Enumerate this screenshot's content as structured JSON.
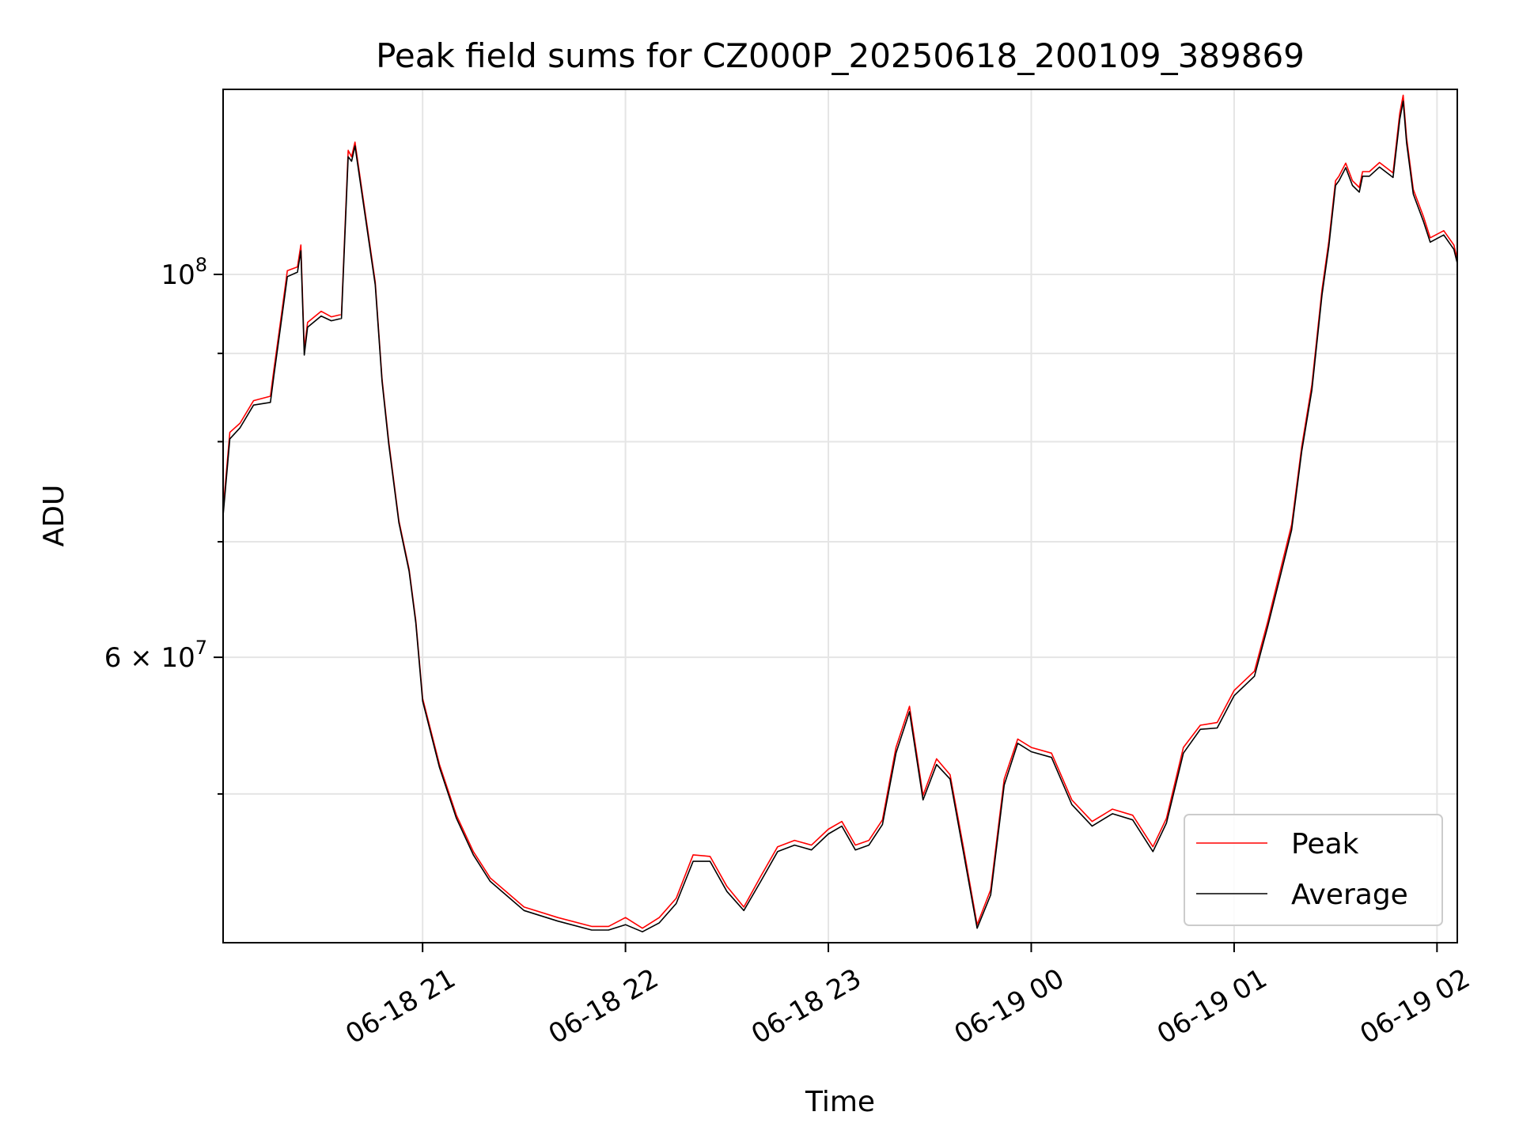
{
  "chart_data": {
    "type": "line",
    "title": "Peak field sums for CZ000P_20250618_200109_389869",
    "xlabel": "Time",
    "ylabel": "ADU",
    "y_scale": "log",
    "ylim": [
      41000000,
      128000000
    ],
    "xlim": [
      "2025-06-18 20:01",
      "2025-06-19 02:06"
    ],
    "x_ticks": [
      {
        "at": "2025-06-18 21:00",
        "label": "06-18 21"
      },
      {
        "at": "2025-06-18 22:00",
        "label": "06-18 22"
      },
      {
        "at": "2025-06-18 23:00",
        "label": "06-18 23"
      },
      {
        "at": "2025-06-19 00:00",
        "label": "06-19 00"
      },
      {
        "at": "2025-06-19 01:00",
        "label": "06-19 01"
      },
      {
        "at": "2025-06-19 02:00",
        "label": "06-19 02"
      }
    ],
    "y_major_ticks": [
      {
        "value": 100000000,
        "base": "10",
        "exp": "8"
      },
      {
        "value": 60000000,
        "mantissa": "6",
        "base": "10",
        "exp": "7"
      }
    ],
    "y_minor_ticks": [
      50000000,
      70000000,
      80000000,
      90000000
    ],
    "grid": true,
    "legend_position": "lower-right",
    "series": [
      {
        "name": "Peak",
        "color": "#ff0000",
        "x": [
          "2025-06-18 20:01",
          "2025-06-18 20:03",
          "2025-06-18 20:06",
          "2025-06-18 20:10",
          "2025-06-18 20:15",
          "2025-06-18 20:16",
          "2025-06-18 20:18",
          "2025-06-18 20:20",
          "2025-06-18 20:23",
          "2025-06-18 20:24",
          "2025-06-18 20:25",
          "2025-06-18 20:26",
          "2025-06-18 20:30",
          "2025-06-18 20:33",
          "2025-06-18 20:36",
          "2025-06-18 20:38",
          "2025-06-18 20:39",
          "2025-06-18 20:40",
          "2025-06-18 20:46",
          "2025-06-18 20:48",
          "2025-06-18 20:50",
          "2025-06-18 20:53",
          "2025-06-18 20:56",
          "2025-06-18 20:58",
          "2025-06-18 21:00",
          "2025-06-18 21:05",
          "2025-06-18 21:10",
          "2025-06-18 21:15",
          "2025-06-18 21:20",
          "2025-06-18 21:30",
          "2025-06-18 21:40",
          "2025-06-18 21:50",
          "2025-06-18 21:55",
          "2025-06-18 22:00",
          "2025-06-18 22:05",
          "2025-06-18 22:10",
          "2025-06-18 22:15",
          "2025-06-18 22:20",
          "2025-06-18 22:25",
          "2025-06-18 22:30",
          "2025-06-18 22:35",
          "2025-06-18 22:40",
          "2025-06-18 22:45",
          "2025-06-18 22:50",
          "2025-06-18 22:55",
          "2025-06-18 23:00",
          "2025-06-18 23:04",
          "2025-06-18 23:08",
          "2025-06-18 23:12",
          "2025-06-18 23:16",
          "2025-06-18 23:20",
          "2025-06-18 23:24",
          "2025-06-18 23:28",
          "2025-06-18 23:32",
          "2025-06-18 23:36",
          "2025-06-18 23:40",
          "2025-06-18 23:44",
          "2025-06-18 23:48",
          "2025-06-18 23:52",
          "2025-06-18 23:56",
          "2025-06-19 00:00",
          "2025-06-19 00:06",
          "2025-06-19 00:12",
          "2025-06-19 00:18",
          "2025-06-19 00:24",
          "2025-06-19 00:30",
          "2025-06-19 00:36",
          "2025-06-19 00:40",
          "2025-06-19 00:45",
          "2025-06-19 00:50",
          "2025-06-19 00:55",
          "2025-06-19 01:00",
          "2025-06-19 01:06",
          "2025-06-19 01:10",
          "2025-06-19 01:14",
          "2025-06-19 01:17",
          "2025-06-19 01:20",
          "2025-06-19 01:23",
          "2025-06-19 01:26",
          "2025-06-19 01:28",
          "2025-06-19 01:30",
          "2025-06-19 01:31",
          "2025-06-19 01:33",
          "2025-06-19 01:35",
          "2025-06-19 01:37",
          "2025-06-19 01:38",
          "2025-06-19 01:40",
          "2025-06-19 01:43",
          "2025-06-19 01:47",
          "2025-06-19 01:49",
          "2025-06-19 01:50",
          "2025-06-19 01:51",
          "2025-06-19 01:53",
          "2025-06-19 01:56",
          "2025-06-19 01:58",
          "2025-06-19 02:02",
          "2025-06-19 02:05",
          "2025-06-19 02:06"
        ],
        "y": [
          73000000,
          81000000,
          82000000,
          84500000,
          85000000,
          88000000,
          94000000,
          100500000,
          101000000,
          104000000,
          90500000,
          93800000,
          95200000,
          94500000,
          94800000,
          118000000,
          117000000,
          119300000,
          99000000,
          87000000,
          80000000,
          72000000,
          67500000,
          63000000,
          56800000,
          52000000,
          48600000,
          46300000,
          44700000,
          43000000,
          42400000,
          41900000,
          41900000,
          42400000,
          41800000,
          42400000,
          43500000,
          46100000,
          46000000,
          44200000,
          43000000,
          44800000,
          46600000,
          47000000,
          46700000,
          47700000,
          48200000,
          46700000,
          47000000,
          48300000,
          53200000,
          56200000,
          49900000,
          52400000,
          51300000,
          46500000,
          42000000,
          44000000,
          51000000,
          53800000,
          53200000,
          52800000,
          49600000,
          48200000,
          49000000,
          48600000,
          46600000,
          48400000,
          53200000,
          54800000,
          55000000,
          57400000,
          58900000,
          63000000,
          67800000,
          71600000,
          79500000,
          86300000,
          98000000,
          104500000,
          113300000,
          114000000,
          116000000,
          113300000,
          112300000,
          114700000,
          114700000,
          116100000,
          114500000,
          124000000,
          127000000,
          120000000,
          112000000,
          108000000,
          105000000,
          106000000,
          104000000,
          102000000
        ]
      },
      {
        "name": "Average",
        "color": "#000000",
        "x": [
          "2025-06-18 20:01",
          "2025-06-18 20:03",
          "2025-06-18 20:06",
          "2025-06-18 20:10",
          "2025-06-18 20:15",
          "2025-06-18 20:16",
          "2025-06-18 20:18",
          "2025-06-18 20:20",
          "2025-06-18 20:23",
          "2025-06-18 20:24",
          "2025-06-18 20:25",
          "2025-06-18 20:26",
          "2025-06-18 20:30",
          "2025-06-18 20:33",
          "2025-06-18 20:36",
          "2025-06-18 20:38",
          "2025-06-18 20:39",
          "2025-06-18 20:40",
          "2025-06-18 20:46",
          "2025-06-18 20:48",
          "2025-06-18 20:50",
          "2025-06-18 20:53",
          "2025-06-18 20:56",
          "2025-06-18 20:58",
          "2025-06-18 21:00",
          "2025-06-18 21:05",
          "2025-06-18 21:10",
          "2025-06-18 21:15",
          "2025-06-18 21:20",
          "2025-06-18 21:30",
          "2025-06-18 21:40",
          "2025-06-18 21:50",
          "2025-06-18 21:55",
          "2025-06-18 22:00",
          "2025-06-18 22:05",
          "2025-06-18 22:10",
          "2025-06-18 22:15",
          "2025-06-18 22:20",
          "2025-06-18 22:25",
          "2025-06-18 22:30",
          "2025-06-18 22:35",
          "2025-06-18 22:40",
          "2025-06-18 22:45",
          "2025-06-18 22:50",
          "2025-06-18 22:55",
          "2025-06-18 23:00",
          "2025-06-18 23:04",
          "2025-06-18 23:08",
          "2025-06-18 23:12",
          "2025-06-18 23:16",
          "2025-06-18 23:20",
          "2025-06-18 23:24",
          "2025-06-18 23:28",
          "2025-06-18 23:32",
          "2025-06-18 23:36",
          "2025-06-18 23:40",
          "2025-06-18 23:44",
          "2025-06-18 23:48",
          "2025-06-18 23:52",
          "2025-06-18 23:56",
          "2025-06-19 00:00",
          "2025-06-19 00:06",
          "2025-06-19 00:12",
          "2025-06-19 00:18",
          "2025-06-19 00:24",
          "2025-06-19 00:30",
          "2025-06-19 00:36",
          "2025-06-19 00:40",
          "2025-06-19 00:45",
          "2025-06-19 00:50",
          "2025-06-19 00:55",
          "2025-06-19 01:00",
          "2025-06-19 01:06",
          "2025-06-19 01:10",
          "2025-06-19 01:14",
          "2025-06-19 01:17",
          "2025-06-19 01:20",
          "2025-06-19 01:23",
          "2025-06-19 01:26",
          "2025-06-19 01:28",
          "2025-06-19 01:30",
          "2025-06-19 01:31",
          "2025-06-19 01:33",
          "2025-06-19 01:35",
          "2025-06-19 01:37",
          "2025-06-19 01:38",
          "2025-06-19 01:40",
          "2025-06-19 01:43",
          "2025-06-19 01:47",
          "2025-06-19 01:49",
          "2025-06-19 01:50",
          "2025-06-19 01:51",
          "2025-06-19 01:53",
          "2025-06-19 01:56",
          "2025-06-19 01:58",
          "2025-06-19 02:02",
          "2025-06-19 02:05",
          "2025-06-19 02:06"
        ],
        "y": [
          72500000,
          80300000,
          81500000,
          84000000,
          84300000,
          87300000,
          93300000,
          99700000,
          100300000,
          103200000,
          89800000,
          93200000,
          94600000,
          94000000,
          94300000,
          117000000,
          116300000,
          118700000,
          98600000,
          86700000,
          79700000,
          71800000,
          67300000,
          62800000,
          56600000,
          51800000,
          48400000,
          46100000,
          44500000,
          42800000,
          42200000,
          41700000,
          41700000,
          42000000,
          41600000,
          42100000,
          43200000,
          45700000,
          45700000,
          43900000,
          42800000,
          44500000,
          46300000,
          46700000,
          46400000,
          47400000,
          47900000,
          46400000,
          46700000,
          48000000,
          52800000,
          55800000,
          49600000,
          52000000,
          51000000,
          46200000,
          41800000,
          43700000,
          50600000,
          53500000,
          52900000,
          52500000,
          49300000,
          47900000,
          48700000,
          48300000,
          46300000,
          48100000,
          52800000,
          54500000,
          54600000,
          57000000,
          58500000,
          62600000,
          67300000,
          71100000,
          79000000,
          85700000,
          97300000,
          103800000,
          112600000,
          113300000,
          115300000,
          112600000,
          111600000,
          114000000,
          114000000,
          115400000,
          113800000,
          123000000,
          126000000,
          119200000,
          111300000,
          107300000,
          104400000,
          105400000,
          103400000,
          101500000
        ]
      }
    ]
  }
}
